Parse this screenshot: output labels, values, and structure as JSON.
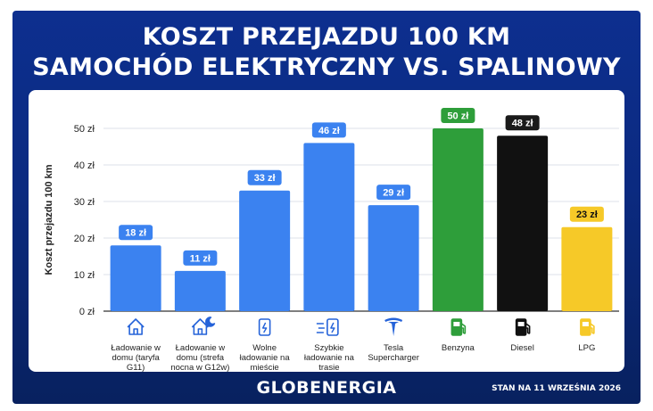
{
  "header": {
    "title_line1": "KOSZT PRZEJAZDU 100 KM",
    "title_line2": "SAMOCHÓD ELEKTRYCZNY VS. SPALINOWY"
  },
  "footer": {
    "brand": "GLOBENERGIA",
    "date_note": "STAN NA 11 WRZEŚNIA 2026"
  },
  "colors": {
    "background": "#0b2a80",
    "electric_bar": "#3b82f0",
    "petrol_bar": "#2e9e3a",
    "diesel_bar": "#111111",
    "lpg_bar": "#f6c928"
  },
  "chart_data": {
    "type": "bar",
    "ylabel": "Koszt przejazdu 100 km",
    "ylim": [
      0,
      50
    ],
    "yticks": [
      "0 zł",
      "10 zł",
      "20 zł",
      "30 zł",
      "40 zł",
      "50 zł"
    ],
    "grid": true,
    "categories": [
      {
        "label": [
          "Ładowanie w",
          "domu (taryfa",
          "G11)"
        ],
        "value": 18,
        "value_label": "18 zł",
        "icon": "home-icon",
        "color": "#3b82f0",
        "badge_color": "#3b82f0",
        "badge_text_color": "#ffffff"
      },
      {
        "label": [
          "Ładowanie w",
          "domu (strefa",
          "nocna w G12w)"
        ],
        "value": 11,
        "value_label": "11 zł",
        "icon": "home-night-icon",
        "color": "#3b82f0",
        "badge_color": "#3b82f0",
        "badge_text_color": "#ffffff"
      },
      {
        "label": [
          "Wolne",
          "ładowanie na",
          "mieście"
        ],
        "value": 33,
        "value_label": "33 zł",
        "icon": "slow-charger-icon",
        "color": "#3b82f0",
        "badge_color": "#3b82f0",
        "badge_text_color": "#ffffff"
      },
      {
        "label": [
          "Szybkie",
          "ładowanie na",
          "trasie"
        ],
        "value": 46,
        "value_label": "46 zł",
        "icon": "fast-charger-icon",
        "color": "#3b82f0",
        "badge_color": "#3b82f0",
        "badge_text_color": "#ffffff"
      },
      {
        "label": [
          "Tesla",
          "Supercharger"
        ],
        "value": 29,
        "value_label": "29 zł",
        "icon": "tesla-icon",
        "color": "#3b82f0",
        "badge_color": "#3b82f0",
        "badge_text_color": "#ffffff"
      },
      {
        "label": [
          "Benzyna"
        ],
        "value": 50,
        "value_label": "50 zł",
        "icon": "fuel-pump-icon",
        "color": "#2e9e3a",
        "badge_color": "#2e9e3a",
        "badge_text_color": "#ffffff"
      },
      {
        "label": [
          "Diesel"
        ],
        "value": 48,
        "value_label": "48 zł",
        "icon": "fuel-pump-icon",
        "color": "#111111",
        "badge_color": "#1a1a1a",
        "badge_text_color": "#ffffff"
      },
      {
        "label": [
          "LPG"
        ],
        "value": 23,
        "value_label": "23 zł",
        "icon": "fuel-pump-icon",
        "color": "#f6c928",
        "badge_color": "#f6c928",
        "badge_text_color": "#111111"
      }
    ]
  }
}
